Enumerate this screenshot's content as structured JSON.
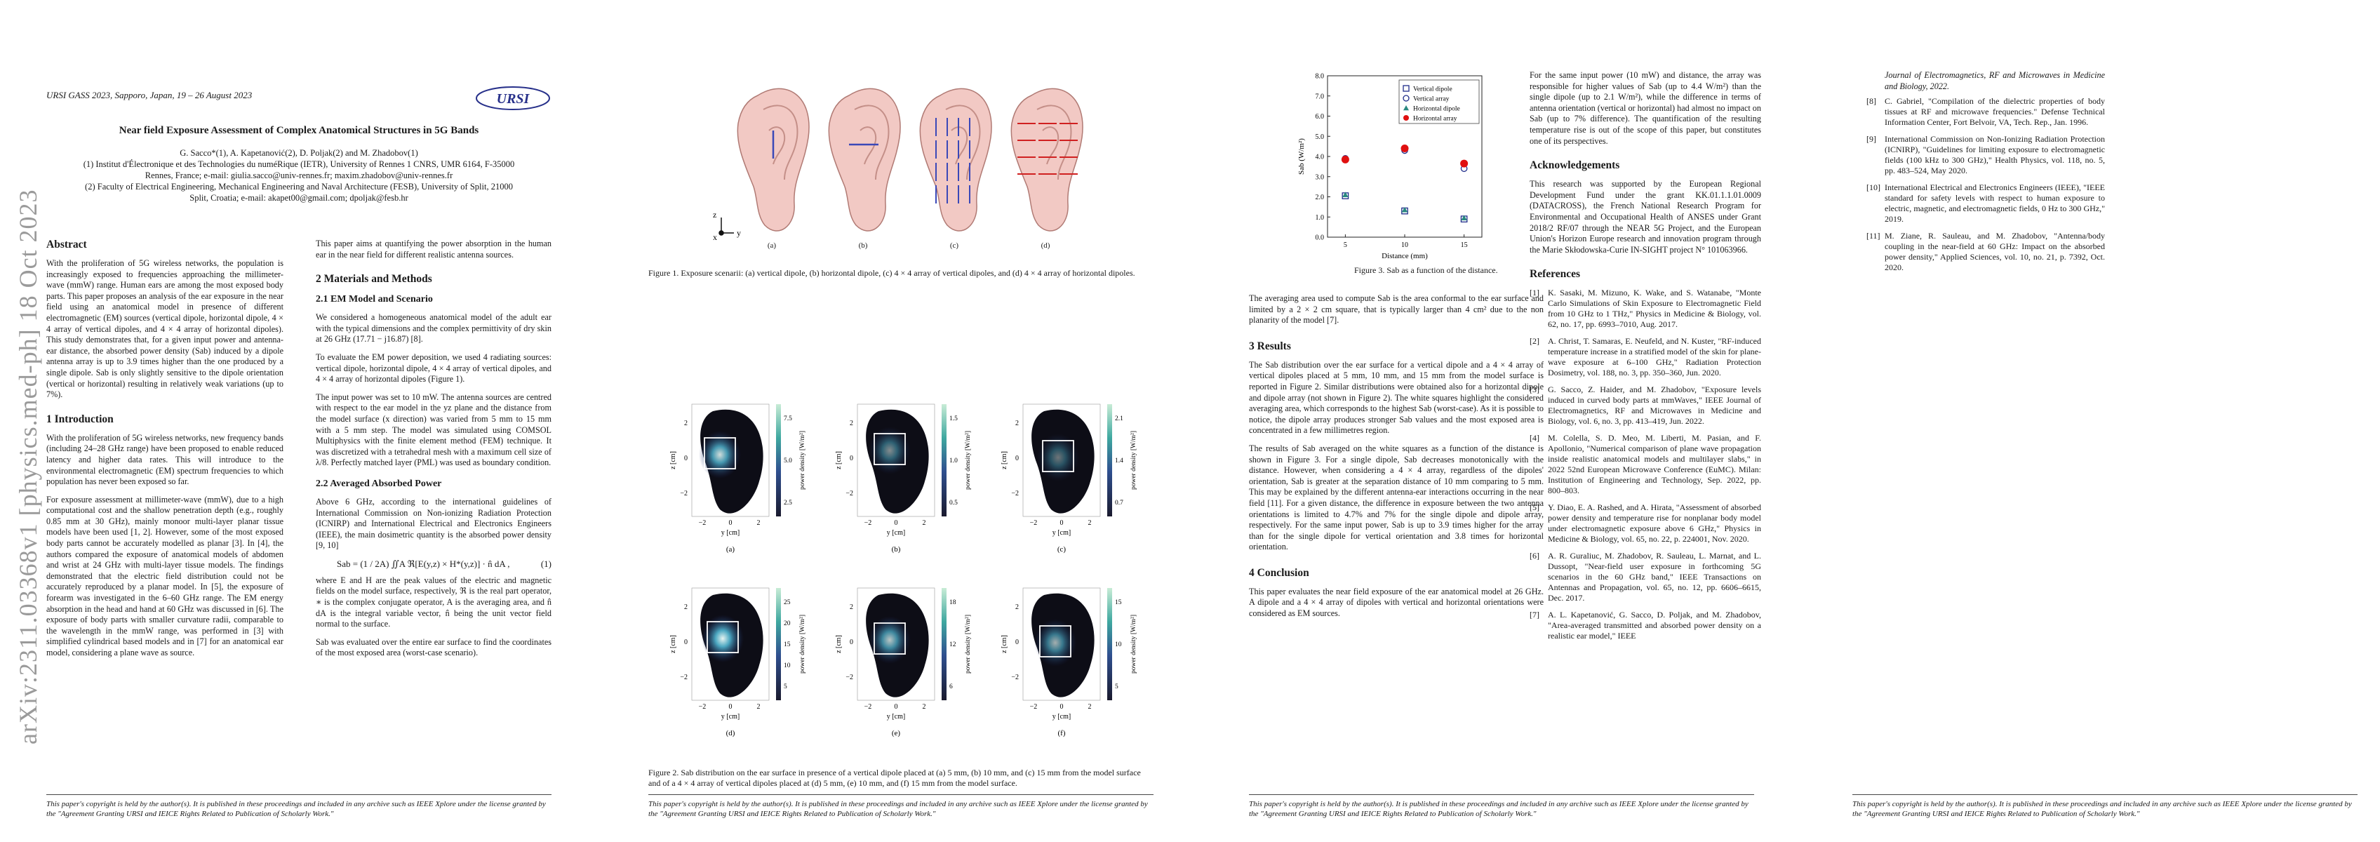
{
  "arxiv_stamp": "arXiv:2311.03368v1  [physics.med-ph]  18 Oct 2023",
  "header": {
    "conference": "URSI GASS 2023, Sapporo, Japan, 19 – 26 August 2023",
    "logo_text": "URSI"
  },
  "paper": {
    "title": "Near field Exposure Assessment of Complex Anatomical Structures in 5G Bands",
    "authors": "G. Sacco*(1), A. Kapetanović(2), D. Poljak(2) and M. Zhadobov(1)",
    "affil1": "(1) Institut d'Électronique et des Technologies du numéRique (IETR), University of Rennes 1 CNRS, UMR 6164, F-35000",
    "affil1b": "Rennes, France; e-mail: giulia.sacco@univ-rennes.fr; maxim.zhadobov@univ-rennes.fr",
    "affil2": "(2) Faculty of Electrical Engineering, Mechanical Engineering and Naval Architecture (FESB), University of Split, 21000",
    "affil2b": "Split, Croatia; e-mail: akapet00@gmail.com; dpoljak@fesb.hr"
  },
  "col1": {
    "abstract_h": "Abstract",
    "abstract": "With the proliferation of 5G wireless networks, the population is increasingly exposed to frequencies approaching the millimeter-wave (mmW) range. Human ears are among the most exposed body parts. This paper proposes an analysis of the ear exposure in the near field using an anatomical model in presence of different electromagnetic (EM) sources (vertical dipole, horizontal dipole, 4 × 4 array of vertical dipoles, and 4 × 4 array of horizontal dipoles). This study demonstrates that, for a given input power and antenna-ear distance, the absorbed power density (Sab) induced by a dipole antenna array is up to 3.9 times higher than the one produced by a single dipole. Sab is only slightly sensitive to the dipole orientation (vertical or horizontal) resulting in relatively weak variations (up to 7%).",
    "intro_h": "1   Introduction",
    "intro1": "With the proliferation of 5G wireless networks, new frequency bands (including 24–28 GHz range) have been proposed to enable reduced latency and higher data rates. This will introduce to the environmental electromagnetic (EM) spectrum frequencies to which population has never been exposed so far.",
    "intro2": "For exposure assessment at millimeter-wave (mmW), due to a high computational cost and the shallow penetration depth (e.g., roughly 0.85 mm at 30 GHz), mainly monoor multi-layer planar tissue models have been used [1, 2]. However, some of the most exposed body parts cannot be accurately modelled as planar [3]. In [4], the authors compared the exposure of anatomical models of abdomen and wrist at 24 GHz with multi-layer tissue models. The findings demonstrated that the electric field distribution could not be accurately reproduced by a planar model. In [5], the exposure of forearm was investigated in the 6–60 GHz range. The EM energy absorption in the head and hand at 60 GHz was discussed in [6]. The exposure of body parts with smaller curvature radii, comparable to the wavelength in the mmW range, was performed in [3] with simplified cylindrical based models and in [7] for an anatomical ear model, considering a plane wave as source."
  },
  "col2": {
    "aim": "This paper aims at quantifying the power absorption in the human ear in the near field for different realistic antenna sources.",
    "mm_h": "2   Materials and Methods",
    "em_h": "2.1   EM Model and Scenario",
    "em1": "We considered a homogeneous anatomical model of the adult ear with the typical dimensions and the complex permittivity of dry skin at 26 GHz (17.71 − j16.87) [8].",
    "em2": "To evaluate the EM power deposition, we used 4 radiating sources: vertical dipole, horizontal dipole, 4 × 4 array of vertical dipoles, and 4 × 4 array of horizontal dipoles (Figure 1).",
    "em3": "The input power was set to 10 mW. The antenna sources are centred with respect to the ear model in the yz plane and the distance from the model surface (x direction) was varied from 5 mm to 15 mm with a 5 mm step. The model was simulated using COMSOL Multiphysics with the finite element method (FEM) technique. It was discretized with a tetrahedral mesh with a maximum cell size of λ/8. Perfectly matched layer (PML) was used as boundary condition.",
    "apd_h": "2.2   Averaged Absorbed Power",
    "apd1": "Above 6 GHz, according to the international guidelines of International Commission on Non-ionizing Radiation Protection (ICNIRP) and International Electrical and Electronics Engineers (IEEE), the main dosimetric quantity is the absorbed power density [9, 10]",
    "eq": "Sab = (1 / 2A) ∬A ℜ[E(y,z) × H*(y,z)] · n̂ dA ,",
    "eq_num": "(1)",
    "apd2": "where E and H are the peak values of the electric and magnetic fields on the model surface, respectively, ℜ is the real part operator, ∗ is the complex conjugate operator, A is the averaging area, and n̂ dA is the integral variable vector, n̂ being the unit vector field normal to the surface.",
    "apd3": "Sab was evaluated over the entire ear surface to find the coordinates of the most exposed area (worst-case scenario)."
  },
  "fig1": {
    "labels": [
      "(a)",
      "(b)",
      "(c)",
      "(d)"
    ],
    "axis_x": "x",
    "axis_y": "y",
    "axis_z": "z",
    "caption": "Figure 1. Exposure scenarii: (a) vertical dipole, (b) horizontal dipole, (c) 4 × 4 array of vertical dipoles, and (d) 4 × 4 array of horizontal dipoles."
  },
  "fig2": {
    "labels": [
      "(a)",
      "(b)",
      "(c)",
      "(d)",
      "(e)",
      "(f)"
    ],
    "xlabel": "y [cm]",
    "ylabel": "z [cm]",
    "cbar_label": "power density [W/m²]",
    "xticks": [
      "−2",
      "0",
      "2"
    ],
    "yticks": [
      "2",
      "0",
      "−2"
    ],
    "cbar_ticks_row1": [
      [
        "7.5",
        "5.0",
        "2.5"
      ],
      [
        "1.5",
        "1.0",
        "0.5"
      ],
      [
        "2.1",
        "1.4",
        "0.7"
      ]
    ],
    "cbar_ticks_row2": [
      [
        "25",
        "20",
        "15",
        "10",
        "5"
      ],
      [
        "18",
        "12",
        "6"
      ],
      [
        "15",
        "10",
        "5"
      ]
    ],
    "caption": "Figure 2. Sab distribution on the ear surface in presence of a vertical dipole placed at (a) 5 mm, (b) 10 mm, and (c) 15 mm from the model surface and of a 4 × 4 array of vertical dipoles placed at (d) 5 mm, (e) 10 mm, and (f) 15 mm from the model surface."
  },
  "fig3": {
    "caption": "Figure 3. Sab as a function of the distance."
  },
  "chart_data": {
    "type": "scatter",
    "xlabel": "Distance (mm)",
    "ylabel": "Sab (W/m²)",
    "x": [
      5,
      10,
      15
    ],
    "xticks": [
      5,
      10,
      15
    ],
    "yticks": [
      0.0,
      1.0,
      2.0,
      3.0,
      4.0,
      5.0,
      6.0,
      7.0,
      8.0
    ],
    "ylim": [
      0,
      8
    ],
    "legend_position": "top-right",
    "series": [
      {
        "name": "Vertical dipole",
        "values": [
          2.05,
          1.3,
          0.9
        ],
        "marker": "square-open",
        "color": "#1f2d8a"
      },
      {
        "name": "Vertical array",
        "values": [
          3.9,
          4.3,
          3.4
        ],
        "marker": "circle-open",
        "color": "#1f2d8a"
      },
      {
        "name": "Horizontal dipole",
        "values": [
          2.1,
          1.35,
          0.95
        ],
        "marker": "triangle-filled",
        "color": "#2a8a80"
      },
      {
        "name": "Horizontal array",
        "values": [
          3.85,
          4.4,
          3.65
        ],
        "marker": "circle-filled",
        "color": "#e01010"
      }
    ]
  },
  "col3": {
    "avg": "The averaging area used to compute Sab is the area conformal to the ear surface and limited by a 2 × 2 cm square, that is typically larger than 4 cm² due to the non planarity of the model [7].",
    "res_h": "3   Results",
    "res1": "The Sab distribution over the ear surface for a vertical dipole and a 4 × 4 array of vertical dipoles placed at 5 mm, 10 mm, and 15 mm from the model surface is reported in Figure 2. Similar distributions were obtained also for a horizontal dipole and dipole array (not shown in Figure 2). The white squares highlight the considered averaging area, which corresponds to the highest Sab (worst-case). As it is possible to notice, the dipole array produces stronger Sab values and the most exposed area is concentrated in a few millimetres region.",
    "res2": "The results of Sab averaged on the white squares as a function of the distance is shown in Figure 3. For a single dipole, Sab decreases monotonically with the distance. However, when considering a 4 × 4 array, regardless of the dipoles' orientation, Sab is greater at the separation distance of 10 mm comparing to 5 mm. This may be explained by the different antenna-ear interactions occurring in the near field [11]. For a given distance, the difference in exposure between the two antenna orientations is limited to 4.7% and 7% for the single dipole and dipole array, respectively. For the same input power, Sab is up to 3.9 times higher for the array than for the single dipole for vertical orientation and 3.8 times for horizontal orientation.",
    "conc_h": "4   Conclusion",
    "conc": "This paper evaluates the near field exposure of the ear anatomical model at 26 GHz. A dipole and a 4 × 4 array of dipoles with vertical and horizontal orientations were considered as EM sources."
  },
  "col4": {
    "para": "For the same input power (10 mW) and distance, the array was responsible for higher values of Sab (up to 4.4 W/m²) than the single dipole (up to 2.1 W/m²), while the difference in terms of antenna orientation (vertical or horizontal) had almost no impact on Sab (up to 7% difference). The quantification of the resulting temperature rise is out of the scope of this paper, but constitutes one of its perspectives.",
    "ack_h": "Acknowledgements",
    "ack": "This research was supported by the European Regional Development Fund under the grant KK.01.1.1.01.0009 (DATACROSS), the French National Research Program for Environmental and Occupational Health of ANSES under Grant 2018/2 RF/07 through the NEAR 5G Project, and the European Union's Horizon Europe research and innovation program through the Marie Skłodowska-Curie IN-SIGHT project N° 101063966.",
    "refs_h": "References",
    "refs": [
      {
        "n": "[1]",
        "t": "K. Sasaki, M. Mizuno, K. Wake, and S. Watanabe, \"Monte Carlo Simulations of Skin Exposure to Electromagnetic Field from 10 GHz to 1 THz,\" Physics in Medicine & Biology, vol. 62, no. 17, pp. 6993–7010, Aug. 2017."
      },
      {
        "n": "[2]",
        "t": "A. Christ, T. Samaras, E. Neufeld, and N. Kuster, \"RF-induced temperature increase in a stratified model of the skin for plane-wave exposure at 6–100 GHz,\" Radiation Protection Dosimetry, vol. 188, no. 3, pp. 350–360, Jun. 2020."
      },
      {
        "n": "[3]",
        "t": "G. Sacco, Z. Haider, and M. Zhadobov, \"Exposure levels induced in curved body parts at mmWaves,\" IEEE Journal of Electromagnetics, RF and Microwaves in Medicine and Biology, vol. 6, no. 3, pp. 413–419, Jun. 2022."
      },
      {
        "n": "[4]",
        "t": "M. Colella, S. D. Meo, M. Liberti, M. Pasian, and F. Apollonio, \"Numerical comparison of plane wave propagation inside realistic anatomical models and multilayer slabs,\" in 2022 52nd European Microwave Conference (EuMC). Milan: Institution of Engineering and Technology, Sep. 2022, pp. 800–803."
      },
      {
        "n": "[5]",
        "t": "Y. Diao, E. A. Rashed, and A. Hirata, \"Assessment of absorbed power density and temperature rise for nonplanar body model under electromagnetic exposure above 6 GHz,\" Physics in Medicine & Biology, vol. 65, no. 22, p. 224001, Nov. 2020."
      },
      {
        "n": "[6]",
        "t": "A. R. Guraliuc, M. Zhadobov, R. Sauleau, L. Marnat, and L. Dussopt, \"Near-field user exposure in forthcoming 5G scenarios in the 60 GHz band,\" IEEE Transactions on Antennas and Propagation, vol. 65, no. 12, pp. 6606–6615, Dec. 2017."
      },
      {
        "n": "[7]",
        "t": "A. L. Kapetanović, G. Sacco, D. Poljak, and M. Zhadobov, \"Area-averaged transmitted and absorbed power density on a realistic ear model,\" IEEE"
      }
    ]
  },
  "col5": {
    "ref7_cont": "Journal of Electromagnetics, RF and Microwaves in Medicine and Biology, 2022.",
    "refs": [
      {
        "n": "[8]",
        "t": "C. Gabriel, \"Compilation of the dielectric properties of body tissues at RF and microwave frequencies.\" Defense Technical Information Center, Fort Belvoir, VA, Tech. Rep., Jan. 1996."
      },
      {
        "n": "[9]",
        "t": "International Commission on Non-Ionizing Radiation Protection (ICNIRP), \"Guidelines for limiting exposure to electromagnetic fields (100 kHz to 300 GHz),\" Health Physics, vol. 118, no. 5, pp. 483–524, May 2020."
      },
      {
        "n": "[10]",
        "t": "International Electrical and Electronics Engineers (IEEE), \"IEEE standard for safety levels with respect to human exposure to electric, magnetic, and electromagnetic fields, 0 Hz to 300 GHz,\" 2019."
      },
      {
        "n": "[11]",
        "t": "M. Ziane, R. Sauleau, and M. Zhadobov, \"Antenna/body coupling in the near-field at 60 GHz: Impact on the absorbed power density,\" Applied Sciences, vol. 10, no. 21, p. 7392, Oct. 2020."
      }
    ]
  },
  "footer": {
    "copyright": "This paper's copyright is held by the author(s). It is published in these proceedings and included in any archive such as IEEE Xplore under the license granted by the \"Agreement Granting URSI and IEICE Rights Related to Publication of Scholarly Work.\""
  }
}
